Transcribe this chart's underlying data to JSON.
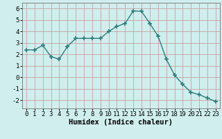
{
  "x": [
    0,
    1,
    2,
    3,
    4,
    5,
    6,
    7,
    8,
    9,
    10,
    11,
    12,
    13,
    14,
    15,
    16,
    17,
    18,
    19,
    20,
    21,
    22,
    23
  ],
  "y": [
    2.4,
    2.4,
    2.8,
    1.8,
    1.6,
    2.7,
    3.4,
    3.4,
    3.4,
    3.4,
    4.0,
    4.45,
    4.7,
    5.8,
    5.75,
    4.7,
    3.6,
    1.6,
    0.2,
    -0.6,
    -1.3,
    -1.5,
    -1.8,
    -2.1
  ],
  "line_color": "#2e7d7d",
  "marker": "+",
  "markersize": 4,
  "markeredgewidth": 1.2,
  "linewidth": 1.0,
  "xlabel": "Humidex (Indice chaleur)",
  "xlabel_fontsize": 7.5,
  "xlim": [
    -0.5,
    23.5
  ],
  "ylim": [
    -2.7,
    6.5
  ],
  "yticks": [
    -2,
    -1,
    0,
    1,
    2,
    3,
    4,
    5,
    6
  ],
  "xticks": [
    0,
    1,
    2,
    3,
    4,
    5,
    6,
    7,
    8,
    9,
    10,
    11,
    12,
    13,
    14,
    15,
    16,
    17,
    18,
    19,
    20,
    21,
    22,
    23
  ],
  "grid_color": "#c8a0a0",
  "bg_color": "#d0eeee",
  "tick_fontsize": 6.5,
  "fig_bg_color": "#d0eeee",
  "spine_color": "#808080"
}
